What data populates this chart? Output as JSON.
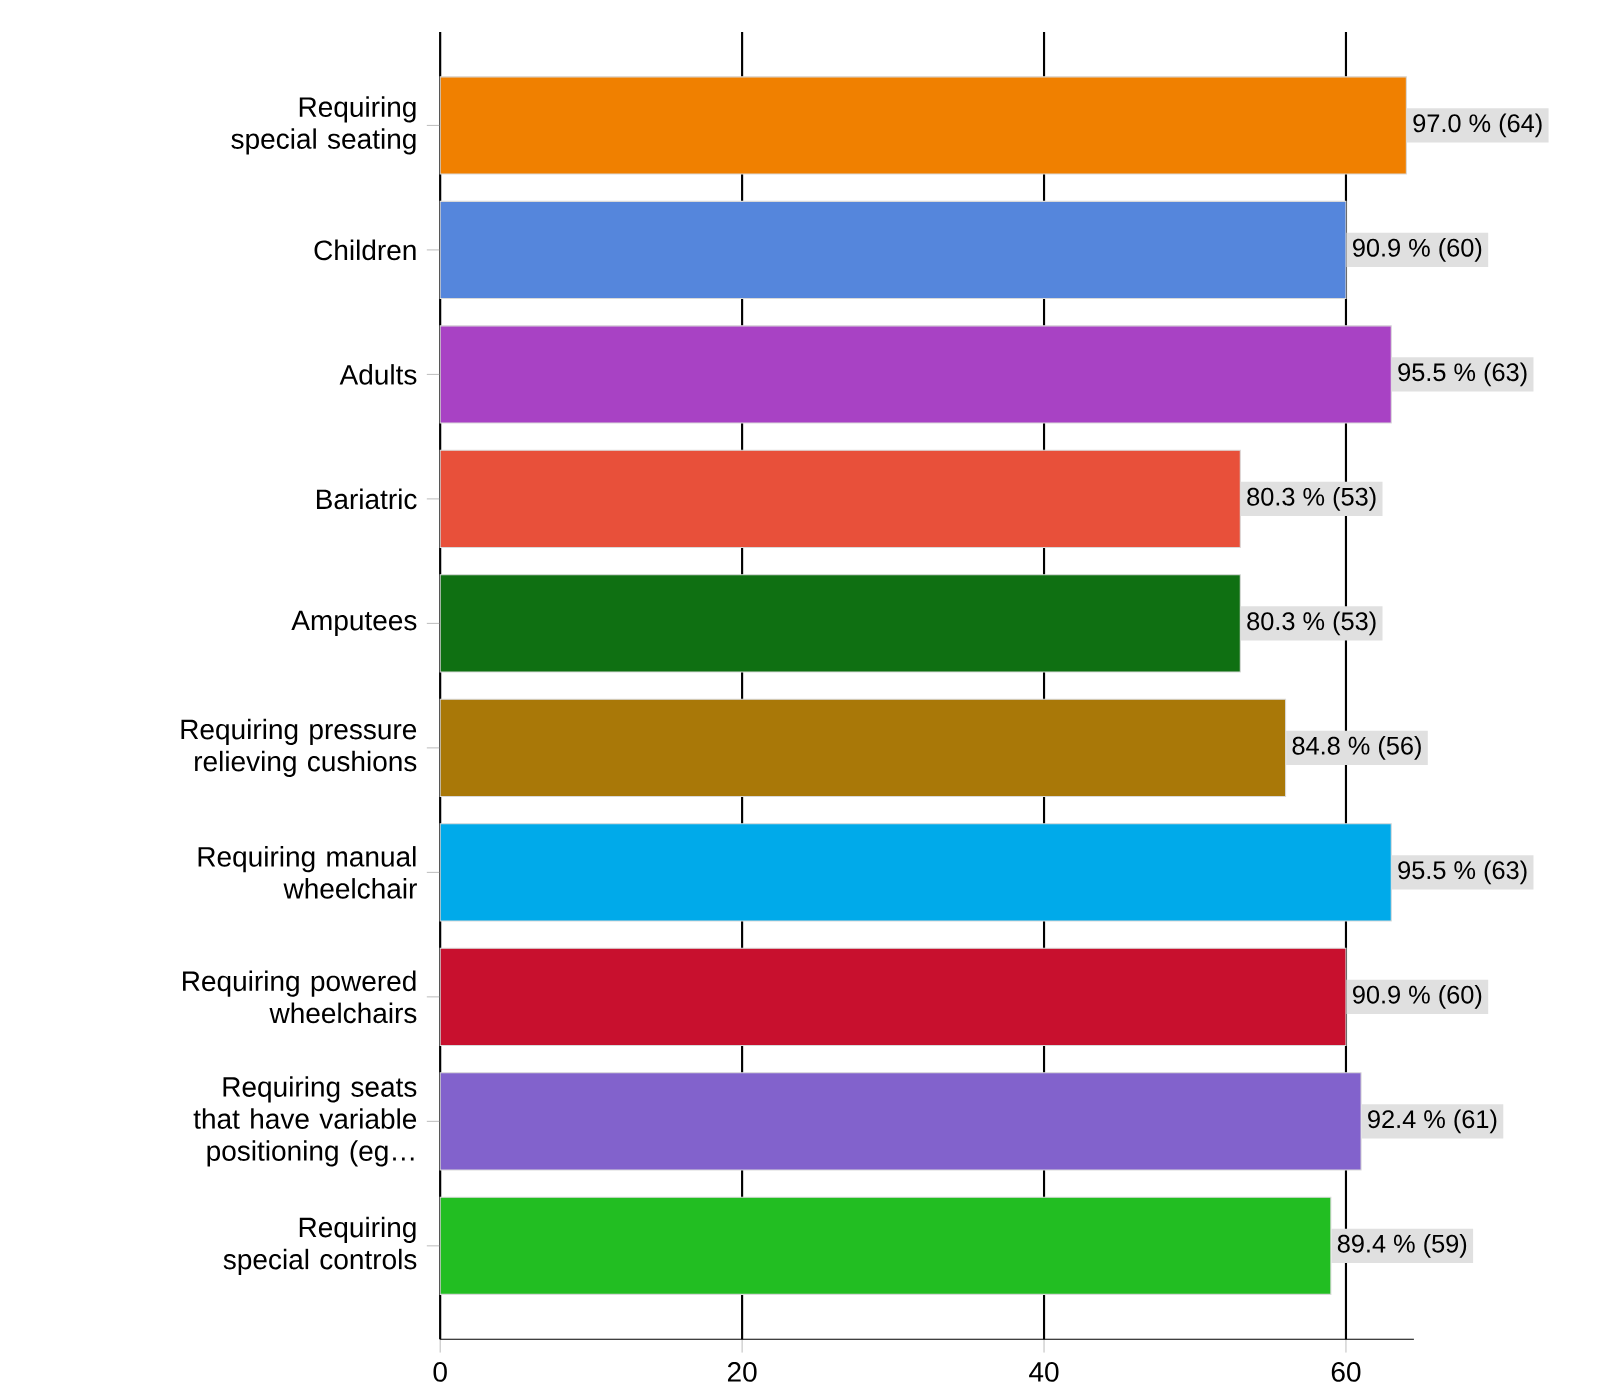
{
  "chart_data": {
    "type": "bar",
    "orientation": "horizontal",
    "categories": [
      "Requiring special seating",
      "Children",
      "Adults",
      "Bariatric",
      "Amputees",
      "Requiring pressure relieving cushions",
      "Requiring manual wheelchair",
      "Requiring powered wheelchairs",
      "Requiring seats that have variable positioning (eg…",
      "Requiring special controls"
    ],
    "values": [
      64,
      60,
      63,
      53,
      53,
      56,
      63,
      60,
      61,
      59
    ],
    "colors": [
      "#f08000",
      "#5586dc",
      "#a842c4",
      "#e8503a",
      "#0f7012",
      "#a97808",
      "#00aaea",
      "#c8102e",
      "#8262cc",
      "#22be22"
    ],
    "value_labels": [
      "97.0 % (64)",
      "90.9 % (60)",
      "95.5 % (63)",
      "80.3 % (53)",
      "80.3 % (53)",
      "84.8 % (56)",
      "95.5 % (63)",
      "90.9 % (60)",
      "92.4 % (61)",
      "89.4 % (59)"
    ],
    "xlim": [
      0,
      64.5
    ],
    "xticks": [
      0,
      20,
      40,
      60
    ],
    "grid": "x"
  }
}
